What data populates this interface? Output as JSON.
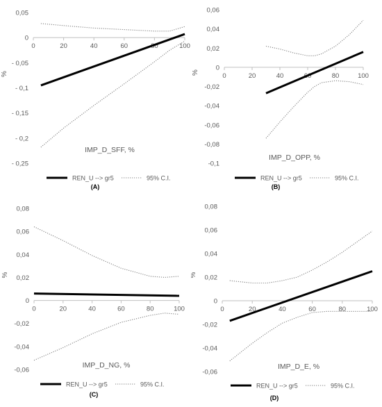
{
  "legend": {
    "main_label": "REN_U --> gr5",
    "ci_label": "95% C.I."
  },
  "chart_data": [
    {
      "panel_tag": "(A)",
      "type": "line",
      "xlabel": "IMP_D_SFF, %",
      "ylabel": "%",
      "xlim": [
        0,
        100
      ],
      "ylim": [
        -0.25,
        0.05
      ],
      "xticks": [
        "0",
        "20",
        "40",
        "60",
        "80",
        "100"
      ],
      "yticks": [
        "0,05",
        "0",
        "- 0,05",
        "- 0,1",
        "- 0,15",
        "- 0,2",
        "- 0,25"
      ],
      "grid": false,
      "legend_position": "bottom",
      "series": [
        {
          "name": "REN_U --> gr5",
          "style": "solid",
          "color": "#000000",
          "x": [
            5,
            100
          ],
          "y": [
            -0.095,
            0.007
          ]
        },
        {
          "name": "95% C.I.",
          "style": "dotted",
          "color": "#7f7f7f",
          "x": [
            5,
            20,
            40,
            60,
            80,
            90,
            100
          ],
          "y": [
            0.028,
            0.024,
            0.019,
            0.016,
            0.013,
            0.013,
            0.022
          ]
        },
        {
          "name": "95% C.I.",
          "style": "dotted",
          "color": "#7f7f7f",
          "x": [
            5,
            20,
            40,
            60,
            80,
            90,
            100
          ],
          "y": [
            -0.218,
            -0.18,
            -0.135,
            -0.092,
            -0.048,
            -0.025,
            -0.007
          ]
        }
      ]
    },
    {
      "panel_tag": "(B)",
      "type": "line",
      "xlabel": "IMP_D_OPP, %",
      "ylabel": "%",
      "xlim": [
        0,
        100
      ],
      "ylim": [
        -0.1,
        0.06
      ],
      "xticks": [
        "0",
        "20",
        "40",
        "60",
        "80",
        "100"
      ],
      "yticks": [
        "0,06",
        "0,04",
        "0,02",
        "0",
        "-0,02",
        "-0,04",
        "-0,06",
        "-0,08",
        "-0,1"
      ],
      "grid": false,
      "legend_position": "bottom",
      "series": [
        {
          "name": "REN_U --> gr5",
          "style": "solid",
          "color": "#000000",
          "x": [
            30,
            100
          ],
          "y": [
            -0.027,
            0.016
          ]
        },
        {
          "name": "95% C.I.",
          "style": "dotted",
          "color": "#7f7f7f",
          "x": [
            30,
            40,
            50,
            60,
            65,
            70,
            80,
            90,
            100
          ],
          "y": [
            0.022,
            0.019,
            0.015,
            0.012,
            0.012,
            0.014,
            0.022,
            0.034,
            0.049
          ]
        },
        {
          "name": "95% C.I.",
          "style": "dotted",
          "color": "#7f7f7f",
          "x": [
            30,
            40,
            50,
            60,
            65,
            70,
            80,
            90,
            100
          ],
          "y": [
            -0.074,
            -0.057,
            -0.041,
            -0.026,
            -0.02,
            -0.016,
            -0.014,
            -0.015,
            -0.018
          ]
        }
      ]
    },
    {
      "panel_tag": "(C)",
      "type": "line",
      "xlabel": "IMP_D_NG, %",
      "ylabel": "%",
      "xlim": [
        0,
        100
      ],
      "ylim": [
        -0.06,
        0.08
      ],
      "xticks": [
        "0",
        "20",
        "40",
        "60",
        "80",
        "100"
      ],
      "yticks": [
        "0,08",
        "0,06",
        "0,04",
        "0,02",
        "0",
        "-0,02",
        "-0,04",
        "-0,06"
      ],
      "grid": false,
      "legend_position": "bottom",
      "series": [
        {
          "name": "REN_U --> gr5",
          "style": "solid",
          "color": "#000000",
          "x": [
            0,
            100
          ],
          "y": [
            0.006,
            0.004
          ]
        },
        {
          "name": "95% C.I.",
          "style": "dotted",
          "color": "#7f7f7f",
          "x": [
            0,
            20,
            40,
            60,
            80,
            90,
            100
          ],
          "y": [
            0.064,
            0.052,
            0.039,
            0.028,
            0.021,
            0.02,
            0.021
          ]
        },
        {
          "name": "95% C.I.",
          "style": "dotted",
          "color": "#7f7f7f",
          "x": [
            0,
            20,
            40,
            60,
            80,
            90,
            100
          ],
          "y": [
            -0.052,
            -0.041,
            -0.029,
            -0.019,
            -0.013,
            -0.011,
            -0.012
          ]
        }
      ]
    },
    {
      "panel_tag": "(D)",
      "type": "line",
      "xlabel": "IMP_D_E, %",
      "ylabel": "%",
      "xlim": [
        0,
        100
      ],
      "ylim": [
        -0.06,
        0.08
      ],
      "xticks": [
        "0",
        "20",
        "40",
        "60",
        "80",
        "100"
      ],
      "yticks": [
        "0,08",
        "0,06",
        "0,04",
        "0,02",
        "0",
        "-0,02",
        "-0,04",
        "-0,06"
      ],
      "grid": false,
      "legend_position": "bottom",
      "series": [
        {
          "name": "REN_U --> gr5",
          "style": "solid",
          "color": "#000000",
          "x": [
            5,
            100
          ],
          "y": [
            -0.017,
            0.025
          ]
        },
        {
          "name": "95% C.I.",
          "style": "dotted",
          "color": "#7f7f7f",
          "x": [
            5,
            20,
            30,
            40,
            50,
            60,
            70,
            80,
            90,
            100
          ],
          "y": [
            0.017,
            0.015,
            0.015,
            0.017,
            0.02,
            0.026,
            0.033,
            0.041,
            0.05,
            0.059
          ]
        },
        {
          "name": "95% C.I.",
          "style": "dotted",
          "color": "#7f7f7f",
          "x": [
            5,
            20,
            30,
            40,
            50,
            60,
            70,
            80,
            90,
            100
          ],
          "y": [
            -0.051,
            -0.036,
            -0.027,
            -0.019,
            -0.014,
            -0.01,
            -0.009,
            -0.009,
            -0.009,
            -0.009
          ]
        }
      ]
    }
  ]
}
